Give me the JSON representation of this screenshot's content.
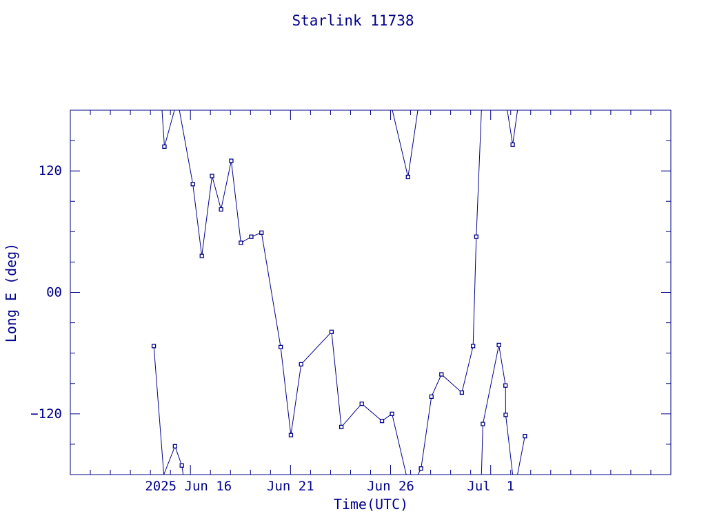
{
  "chart_data": {
    "type": "line",
    "title": "Starlink 11738",
    "xlabel": "Time(UTC)",
    "ylabel": "Long E (deg)",
    "x_unit": "day",
    "xlim": [
      10.0,
      40.0
    ],
    "ylim": [
      -180,
      180
    ],
    "yticks": [
      -120,
      0,
      120
    ],
    "ytick_labels": [
      "−120",
      "00",
      "120"
    ],
    "xticks": [
      {
        "x": 16,
        "label": "2025 Jun 16"
      },
      {
        "x": 21,
        "label": "Jun 21"
      },
      {
        "x": 26,
        "label": "Jun 26"
      },
      {
        "x": 31,
        "label": "Jul  1"
      }
    ],
    "grid": false,
    "line_color": "#00008b",
    "series": [
      {
        "points": [
          [
            14.17,
            -53
          ],
          [
            14.67,
            -180
          ],
          [
            15.23,
            -152
          ],
          [
            15.57,
            -171
          ],
          [
            15.64,
            -180
          ]
        ]
      },
      {
        "points": [
          [
            14.58,
            180
          ],
          [
            14.7,
            144
          ],
          [
            15.2,
            180
          ],
          [
            15.45,
            180
          ],
          [
            16.12,
            107
          ],
          [
            16.57,
            36
          ],
          [
            17.08,
            115
          ],
          [
            17.53,
            82
          ],
          [
            18.04,
            130
          ],
          [
            18.52,
            49
          ],
          [
            19.04,
            55
          ],
          [
            19.55,
            59
          ],
          [
            20.51,
            -54
          ],
          [
            21.02,
            -141
          ],
          [
            21.53,
            -71
          ],
          [
            23.05,
            -39
          ],
          [
            23.54,
            -133
          ],
          [
            24.56,
            -110
          ],
          [
            25.57,
            -127
          ],
          [
            26.07,
            -120
          ],
          [
            26.78,
            -180
          ]
        ]
      },
      {
        "points": [
          [
            26.09,
            180
          ],
          [
            26.87,
            114
          ],
          [
            27.36,
            180
          ]
        ]
      },
      {
        "points": [
          [
            27.37,
            -180
          ],
          [
            27.52,
            -174
          ],
          [
            28.04,
            -103
          ],
          [
            28.54,
            -81
          ],
          [
            29.56,
            -99
          ],
          [
            30.12,
            -53
          ],
          [
            30.28,
            55
          ],
          [
            30.54,
            180
          ]
        ]
      },
      {
        "points": [
          [
            30.54,
            -180
          ],
          [
            30.61,
            -130
          ],
          [
            31.41,
            -52
          ],
          [
            31.74,
            -92
          ],
          [
            31.75,
            -121
          ],
          [
            32.1,
            -180
          ]
        ]
      },
      {
        "points": [
          [
            31.83,
            180
          ],
          [
            32.1,
            146
          ],
          [
            32.34,
            180
          ]
        ]
      },
      {
        "points": [
          [
            32.34,
            -180
          ],
          [
            32.71,
            -142
          ]
        ]
      }
    ]
  }
}
